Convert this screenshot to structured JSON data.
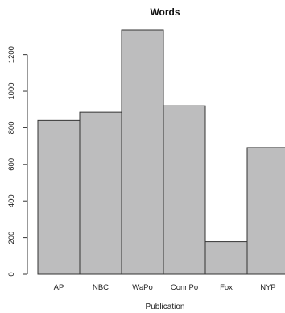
{
  "chart_data": {
    "type": "bar",
    "title": "Words",
    "xlabel": "Publication",
    "ylabel": "",
    "categories": [
      "AP",
      "NBC",
      "WaPo",
      "ConnPo",
      "Fox",
      "NYP"
    ],
    "values": [
      840,
      885,
      1335,
      920,
      178,
      692
    ],
    "ylim": [
      0,
      1335
    ],
    "yticks": [
      0,
      200,
      400,
      600,
      800,
      1000,
      1200
    ],
    "bar_color": "#bdbdbe",
    "edge_color": "#333333",
    "grid": false,
    "legend": "none"
  }
}
